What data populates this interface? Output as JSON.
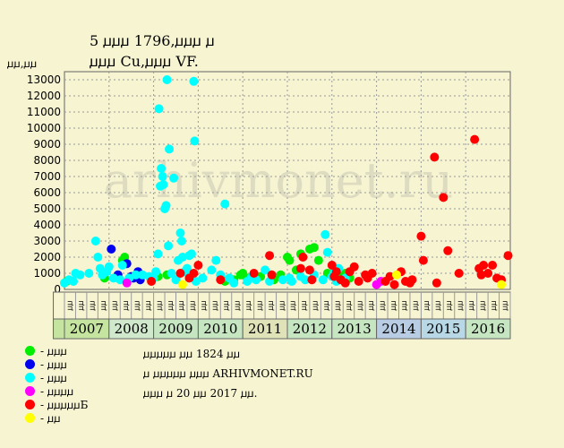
{
  "title_line1": "5 ꙡꙡꙡ 1796,ꙡꙡꙡ ꙡ",
  "title_line2": "ꙡꙡꙡ Cu,ꙡꙡꙡ VF.",
  "y_axis_title": "ꙡꙡ,ꙡꙡ",
  "watermark": "arhivmonet.ru",
  "note_lines": [
    "ꙡꙡꙡꙡꙡ ꙡꙡ 1824 ꙡꙡ",
    "ꙡ ꙡꙡꙡꙡꙡ ꙡꙡꙡ ARHIVMONET.RU",
    "ꙡꙡꙡ ꙡ 20 ꙡꙡ 2017 ꙡꙡ."
  ],
  "legend": [
    {
      "label": "- ꙡꙡꙡ",
      "color": "#00ee00"
    },
    {
      "label": "- ꙡꙡꙡ",
      "color": "#0000ee"
    },
    {
      "label": "- ꙡꙡꙡ",
      "color": "#00ffff"
    },
    {
      "label": "- ꙡꙡꙡꙡ",
      "color": "#ff00ff"
    },
    {
      "label": "- ꙡꙡꙡꙡꙡБ",
      "color": "#ff0000"
    },
    {
      "label": "- ꙡꙡ",
      "color": "#ffff00"
    }
  ],
  "chart_data": {
    "type": "scatter",
    "ylim": [
      0,
      13500
    ],
    "yticks": [
      0,
      1000,
      2000,
      3000,
      4000,
      5000,
      6000,
      7000,
      8000,
      9000,
      10000,
      11000,
      12000,
      13000
    ],
    "quarter_labels": [
      "ꙡꙡ",
      "ꙡꙡ",
      "ꙡꙡ",
      "ꙡꙡ"
    ],
    "years": [
      {
        "label": "2007",
        "color": "#c4e4a0"
      },
      {
        "label": "2008",
        "color": "#d0e8cc"
      },
      {
        "label": "2009",
        "color": "#c6e6c2"
      },
      {
        "label": "2010",
        "color": "#c6e6c2"
      },
      {
        "label": "2011",
        "color": "#e0e2b8"
      },
      {
        "label": "2012",
        "color": "#c6e6c2"
      },
      {
        "label": "2013",
        "color": "#c6e6c2"
      },
      {
        "label": "2014",
        "color": "#b8cce4"
      },
      {
        "label": "2015",
        "color": "#b8d8e6"
      },
      {
        "label": "2016",
        "color": "#c6e6c2"
      }
    ],
    "series": [
      {
        "color": "#00ee00",
        "points": [
          [
            2007.05,
            500
          ],
          [
            2007.9,
            700
          ],
          [
            2008.3,
            1800
          ],
          [
            2008.35,
            2000
          ],
          [
            2009.1,
            800
          ],
          [
            2009.3,
            900
          ],
          [
            2010.6,
            500
          ],
          [
            2010.8,
            600
          ],
          [
            2010.95,
            900
          ],
          [
            2011.0,
            1000
          ],
          [
            2011.1,
            700
          ],
          [
            2011.4,
            800
          ],
          [
            2011.7,
            600
          ],
          [
            2011.85,
            900
          ],
          [
            2012.0,
            2000
          ],
          [
            2012.05,
            1800
          ],
          [
            2012.2,
            1200
          ],
          [
            2012.3,
            2200
          ],
          [
            2012.5,
            2500
          ],
          [
            2012.6,
            2600
          ],
          [
            2012.7,
            1800
          ],
          [
            2012.9,
            1000
          ],
          [
            2013.2,
            800
          ],
          [
            2013.3,
            1000
          ],
          [
            2013.4,
            700
          ]
        ]
      },
      {
        "color": "#0000ee",
        "points": [
          [
            2008.05,
            2500
          ],
          [
            2008.2,
            900
          ],
          [
            2008.4,
            1600
          ],
          [
            2008.5,
            800
          ],
          [
            2008.55,
            700
          ],
          [
            2008.65,
            1100
          ],
          [
            2008.7,
            600
          ]
        ]
      },
      {
        "color": "#00ffff",
        "points": [
          [
            2007.0,
            400
          ],
          [
            2007.1,
            600
          ],
          [
            2007.2,
            500
          ],
          [
            2007.25,
            1000
          ],
          [
            2007.35,
            900
          ],
          [
            2007.55,
            1000
          ],
          [
            2007.7,
            3000
          ],
          [
            2007.75,
            2000
          ],
          [
            2007.8,
            1300
          ],
          [
            2007.85,
            900
          ],
          [
            2007.95,
            1100
          ],
          [
            2008.0,
            1400
          ],
          [
            2008.1,
            700
          ],
          [
            2008.25,
            600
          ],
          [
            2008.3,
            1500
          ],
          [
            2008.45,
            700
          ],
          [
            2008.6,
            900
          ],
          [
            2008.75,
            900
          ],
          [
            2008.9,
            800
          ],
          [
            2009.0,
            700
          ],
          [
            2009.05,
            1100
          ],
          [
            2009.1,
            2200
          ],
          [
            2009.12,
            11200
          ],
          [
            2009.15,
            6400
          ],
          [
            2009.17,
            7500
          ],
          [
            2009.2,
            7000
          ],
          [
            2009.22,
            6500
          ],
          [
            2009.25,
            5000
          ],
          [
            2009.28,
            5200
          ],
          [
            2009.3,
            13000
          ],
          [
            2009.33,
            2700
          ],
          [
            2009.35,
            8700
          ],
          [
            2009.4,
            1000
          ],
          [
            2009.45,
            6900
          ],
          [
            2009.5,
            600
          ],
          [
            2009.55,
            1800
          ],
          [
            2009.6,
            3500
          ],
          [
            2009.63,
            3000
          ],
          [
            2009.65,
            2000
          ],
          [
            2009.7,
            1100
          ],
          [
            2009.75,
            1300
          ],
          [
            2009.8,
            2100
          ],
          [
            2009.85,
            2200
          ],
          [
            2009.9,
            12900
          ],
          [
            2009.92,
            9200
          ],
          [
            2009.95,
            500
          ],
          [
            2010.1,
            700
          ],
          [
            2010.3,
            1200
          ],
          [
            2010.4,
            1800
          ],
          [
            2010.5,
            900
          ],
          [
            2010.6,
            5300
          ],
          [
            2010.7,
            700
          ],
          [
            2010.8,
            400
          ],
          [
            2011.1,
            500
          ],
          [
            2011.2,
            800
          ],
          [
            2011.3,
            600
          ],
          [
            2011.5,
            1200
          ],
          [
            2011.6,
            500
          ],
          [
            2011.9,
            600
          ],
          [
            2012.05,
            700
          ],
          [
            2012.1,
            500
          ],
          [
            2012.3,
            800
          ],
          [
            2012.4,
            600
          ],
          [
            2012.6,
            900
          ],
          [
            2012.8,
            600
          ],
          [
            2012.85,
            3400
          ],
          [
            2012.9,
            2300
          ],
          [
            2013.0,
            800
          ],
          [
            2013.05,
            1100
          ],
          [
            2013.1,
            500
          ],
          [
            2013.15,
            1300
          ],
          [
            2013.3,
            700
          ]
        ]
      },
      {
        "color": "#ff00ff",
        "points": [
          [
            2008.4,
            400
          ],
          [
            2014.0,
            300
          ],
          [
            2014.1,
            500
          ]
        ]
      },
      {
        "color": "#ff0000",
        "points": [
          [
            2008.95,
            500
          ],
          [
            2009.6,
            1000
          ],
          [
            2009.8,
            700
          ],
          [
            2009.9,
            1000
          ],
          [
            2010.0,
            1500
          ],
          [
            2010.5,
            600
          ],
          [
            2011.25,
            1000
          ],
          [
            2011.6,
            2100
          ],
          [
            2011.65,
            900
          ],
          [
            2012.3,
            1300
          ],
          [
            2012.35,
            2000
          ],
          [
            2012.5,
            1200
          ],
          [
            2012.55,
            600
          ],
          [
            2013.0,
            1500
          ],
          [
            2013.05,
            800
          ],
          [
            2013.1,
            1100
          ],
          [
            2013.2,
            600
          ],
          [
            2013.3,
            400
          ],
          [
            2013.4,
            1100
          ],
          [
            2013.5,
            1400
          ],
          [
            2013.6,
            500
          ],
          [
            2013.75,
            900
          ],
          [
            2013.8,
            700
          ],
          [
            2013.9,
            1000
          ],
          [
            2014.2,
            500
          ],
          [
            2014.3,
            800
          ],
          [
            2014.4,
            300
          ],
          [
            2014.55,
            1100
          ],
          [
            2014.65,
            500
          ],
          [
            2014.75,
            400
          ],
          [
            2014.8,
            600
          ],
          [
            2015.0,
            3300
          ],
          [
            2015.05,
            1800
          ],
          [
            2015.3,
            8200
          ],
          [
            2015.35,
            400
          ],
          [
            2015.5,
            5700
          ],
          [
            2015.6,
            2400
          ],
          [
            2015.85,
            1000
          ],
          [
            2016.2,
            9300
          ],
          [
            2016.3,
            1300
          ],
          [
            2016.35,
            900
          ],
          [
            2016.4,
            1500
          ],
          [
            2016.5,
            1000
          ],
          [
            2016.6,
            1500
          ],
          [
            2016.7,
            700
          ],
          [
            2016.8,
            600
          ],
          [
            2016.95,
            2100
          ]
        ]
      },
      {
        "color": "#ffff00",
        "points": [
          [
            2009.65,
            300
          ],
          [
            2014.45,
            900
          ],
          [
            2016.8,
            300
          ]
        ]
      }
    ]
  }
}
